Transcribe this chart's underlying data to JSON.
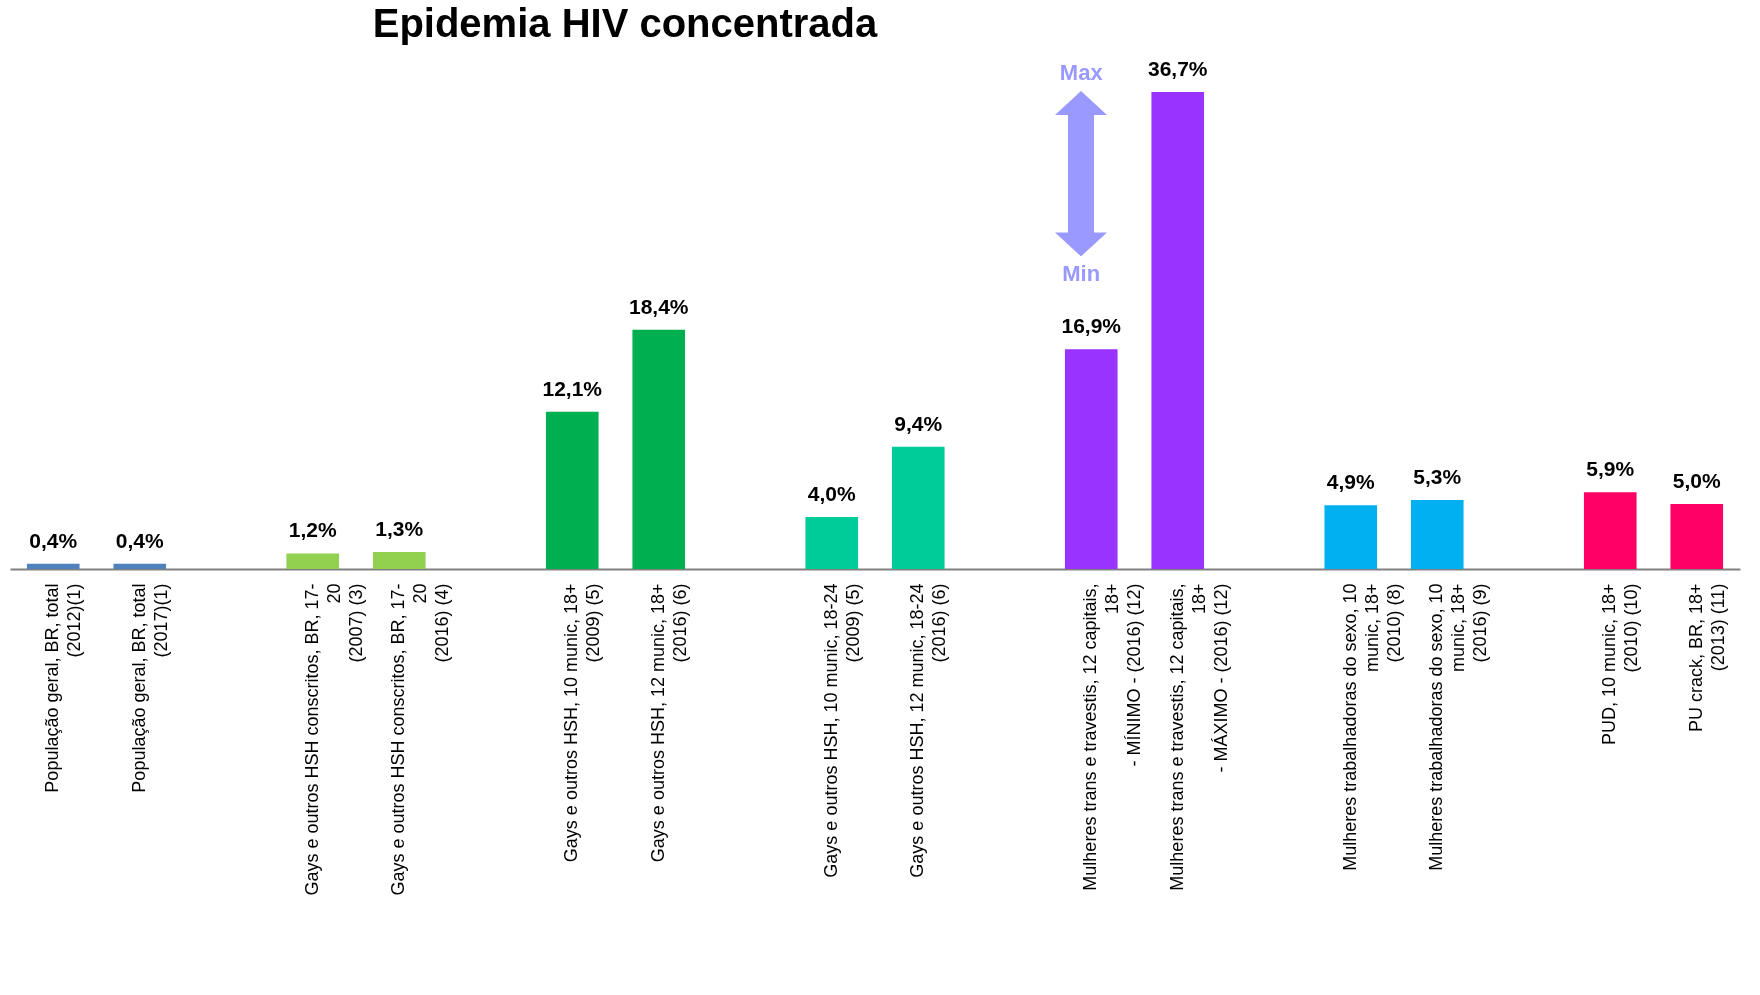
{
  "chart_data": {
    "type": "bar",
    "title": "Epidemia HIV concentrada",
    "categories": [
      "População geral, BR, total\n(2012)(1)",
      "População geral, BR, total\n(2017)(1)",
      null,
      "Gays e outros HSH conscritos, BR, 17-\n20\n(2007) (3)",
      "Gays e outros HSH conscritos, BR, 17-\n20\n(2016) (4)",
      null,
      "Gays e outros HSH, 10 munic, 18+\n(2009) (5)",
      "Gays e outros HSH, 12 munic, 18+\n(2016) (6)",
      null,
      "Gays e outros HSH, 10 munic, 18-24\n(2009) (5)",
      "Gays e outros HSH, 12 munic, 18-24\n(2016) (6)",
      null,
      "Mulheres trans e travestis, 12 capitais,\n18+\n- MÍNIMO - (2016) (12)",
      "Mulheres trans e travestis, 12 capitais,\n18+\n- MÁXIMO - (2016) (12)",
      null,
      "Mulheres trabalhadoras do sexo, 10\nmunic, 18+\n(2010) (8)",
      "Mulheres trabalhadoras do sexo, 10\nmunic, 18+\n(2016) (9)",
      null,
      "PUD, 10 munic, 18+\n(2010) (10)",
      "PU crack, BR, 18+\n(2013) (11)"
    ],
    "values": [
      0.4,
      0.4,
      null,
      1.2,
      1.3,
      null,
      12.1,
      18.4,
      null,
      4.0,
      9.4,
      null,
      16.9,
      36.7,
      null,
      4.9,
      5.3,
      null,
      5.9,
      5.0
    ],
    "value_labels": [
      "0,4%",
      "0,4%",
      null,
      "1,2%",
      "1,3%",
      null,
      "12,1%",
      "18,4%",
      null,
      "4,0%",
      "9,4%",
      null,
      "16,9%",
      "36,7%",
      null,
      "4,9%",
      "5,3%",
      null,
      "5,9%",
      "5,0%"
    ],
    "colors": [
      "#4f81bd",
      "#4f81bd",
      null,
      "#92d050",
      "#92d050",
      null,
      "#00b050",
      "#00b050",
      null,
      "#00cc99",
      "#00cc99",
      null,
      "#9933ff",
      "#9933ff",
      null,
      "#00b0f0",
      "#00b0f0",
      null,
      "#ff0066",
      "#ff0066"
    ],
    "annotations": [
      "Max",
      "Min"
    ],
    "tick_labels": "x"
  }
}
